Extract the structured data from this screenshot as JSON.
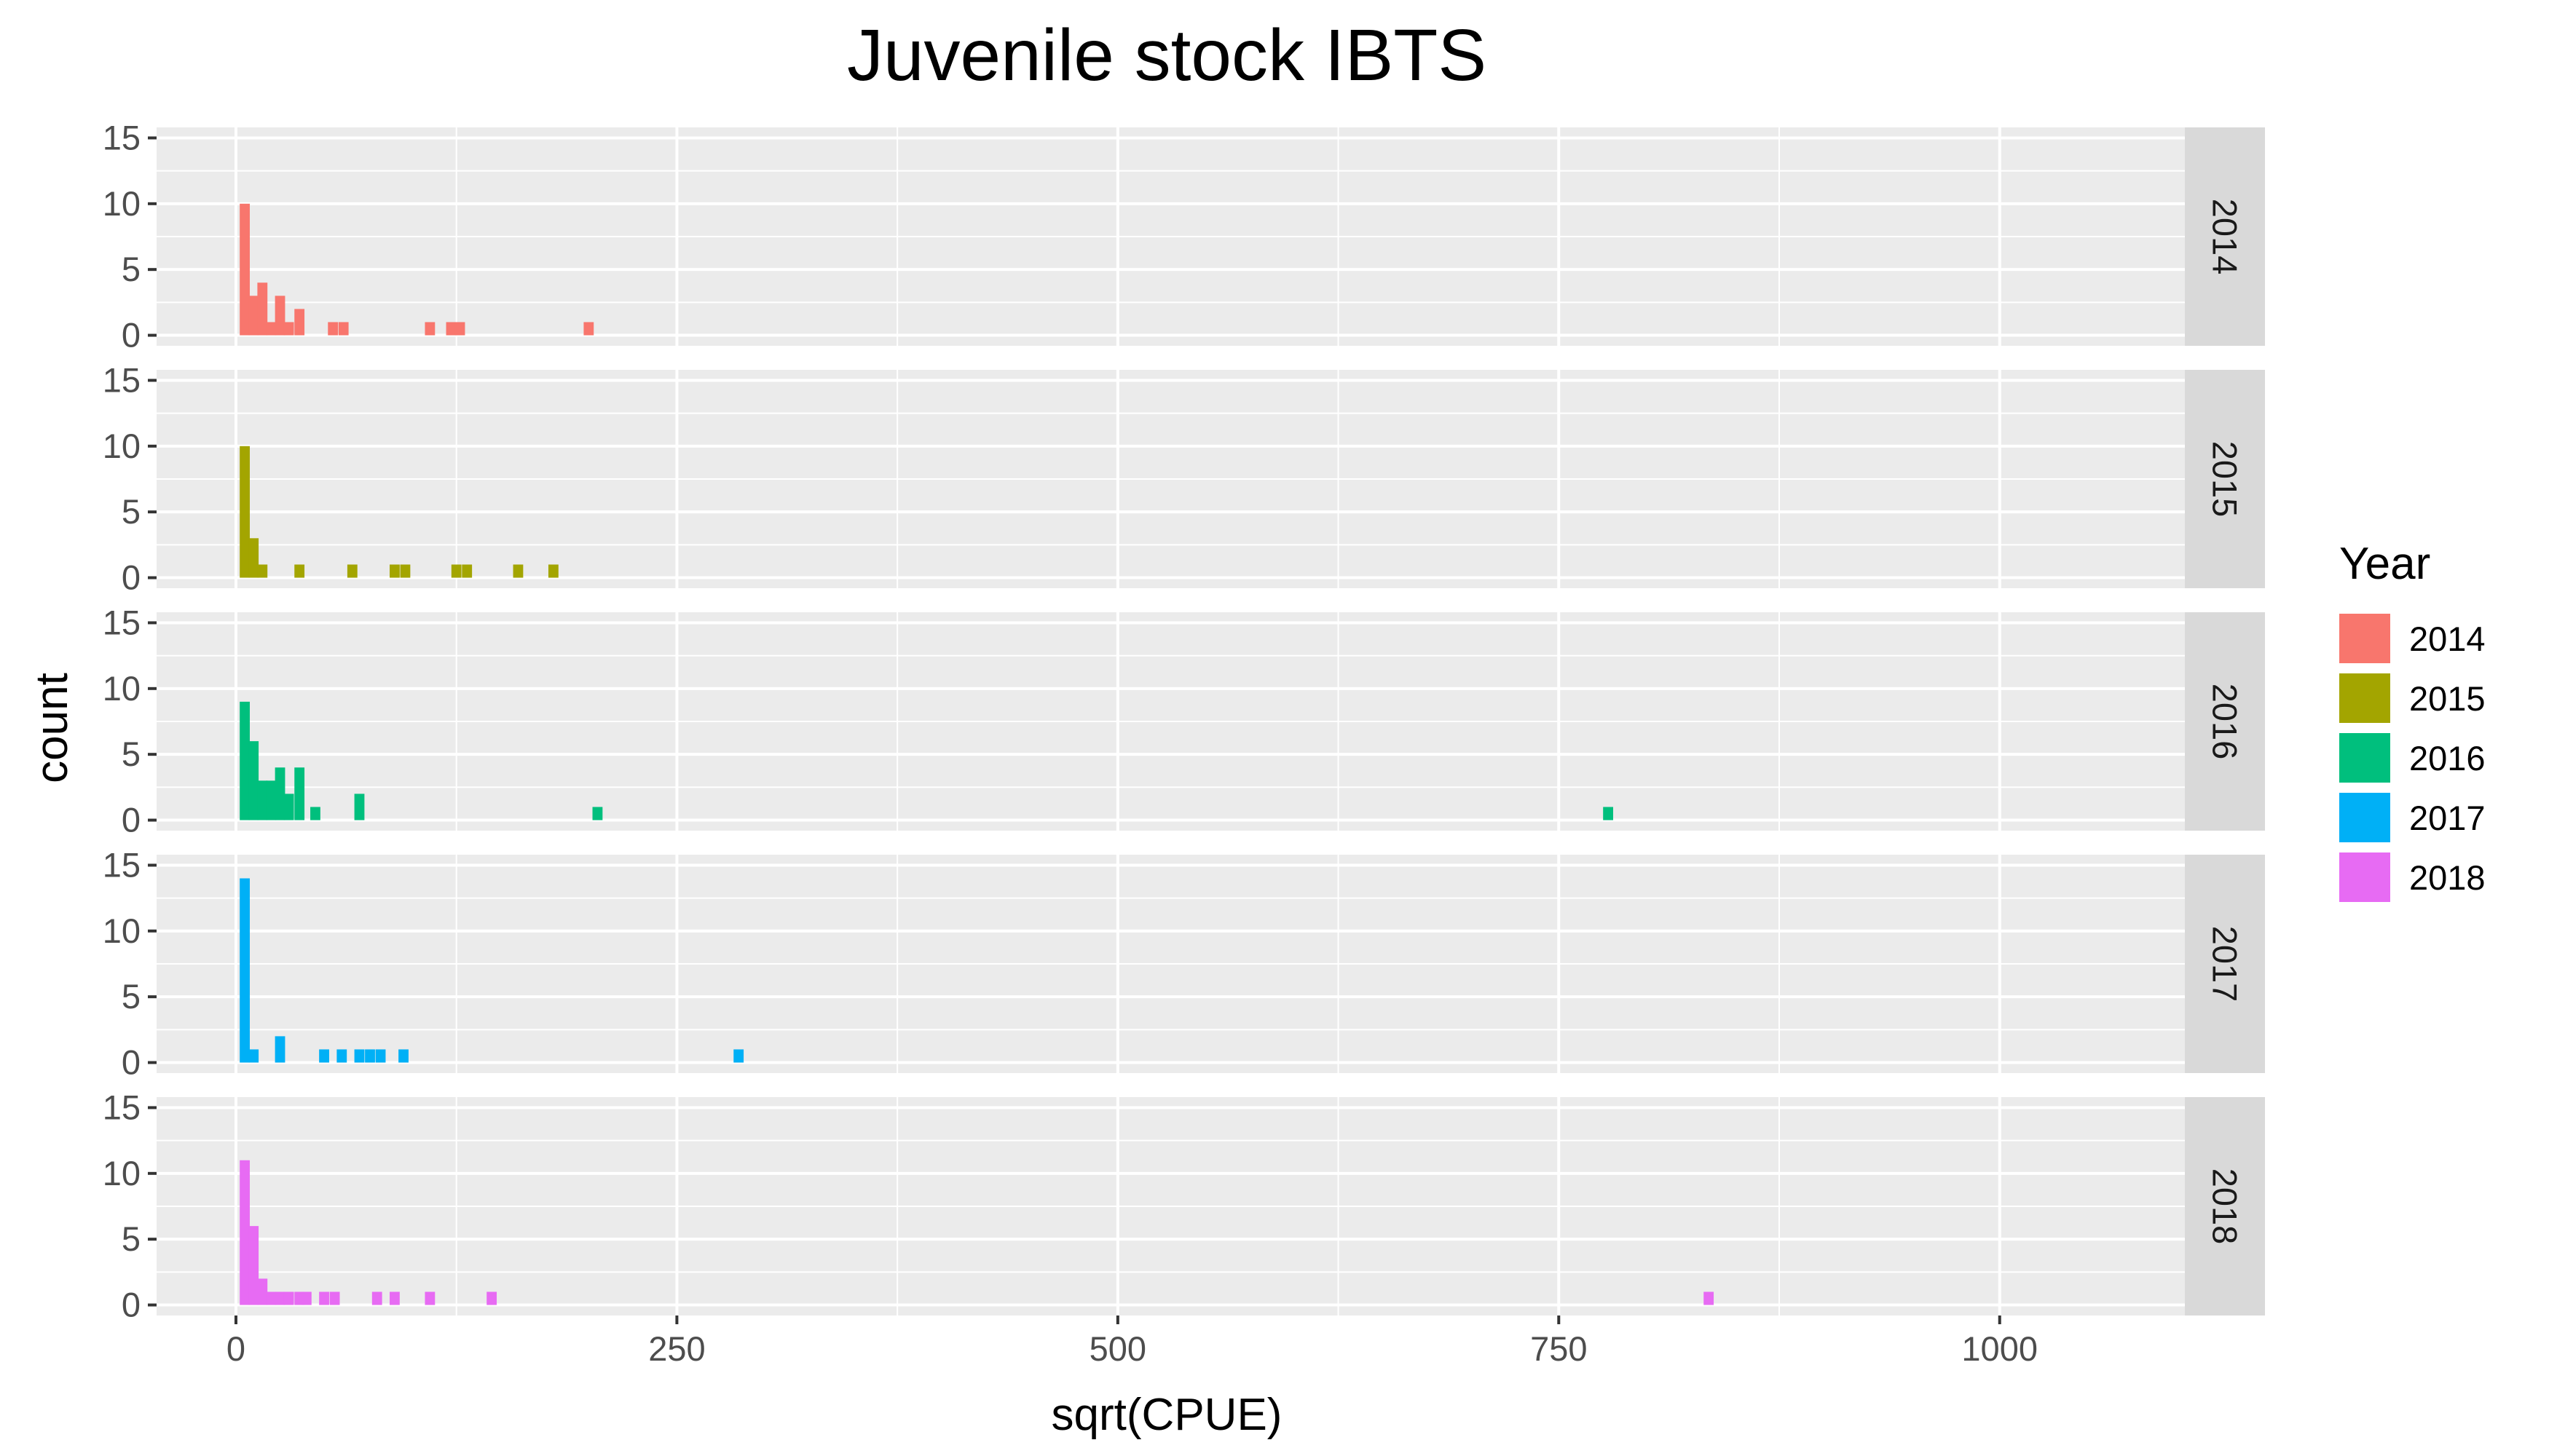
{
  "chart_data": {
    "type": "bar",
    "title": "Juvenile stock IBTS",
    "xlabel": "sqrt(CPUE)",
    "ylabel": "count",
    "xlim": [
      -45,
      1105
    ],
    "ylim": [
      -0.8,
      15.8
    ],
    "x_ticks": [
      0,
      250,
      500,
      750,
      1000
    ],
    "y_ticks": [
      0,
      5,
      10,
      15
    ],
    "bin_width": 5.7,
    "grid": true,
    "legend_title": "Year",
    "legend_position": "right",
    "facets": [
      {
        "label": "2014",
        "color": "#F8766D",
        "bins": [
          {
            "x": 5,
            "count": 10
          },
          {
            "x": 10,
            "count": 3
          },
          {
            "x": 15,
            "count": 4
          },
          {
            "x": 20,
            "count": 1
          },
          {
            "x": 25,
            "count": 3
          },
          {
            "x": 30,
            "count": 1
          },
          {
            "x": 36,
            "count": 2
          },
          {
            "x": 55,
            "count": 1
          },
          {
            "x": 61,
            "count": 1
          },
          {
            "x": 110,
            "count": 1
          },
          {
            "x": 122,
            "count": 1
          },
          {
            "x": 127,
            "count": 1
          },
          {
            "x": 200,
            "count": 1
          }
        ]
      },
      {
        "label": "2015",
        "color": "#A3A500",
        "bins": [
          {
            "x": 5,
            "count": 10
          },
          {
            "x": 10,
            "count": 3
          },
          {
            "x": 15,
            "count": 1
          },
          {
            "x": 36,
            "count": 1
          },
          {
            "x": 66,
            "count": 1
          },
          {
            "x": 90,
            "count": 1
          },
          {
            "x": 96,
            "count": 1
          },
          {
            "x": 125,
            "count": 1
          },
          {
            "x": 131,
            "count": 1
          },
          {
            "x": 160,
            "count": 1
          },
          {
            "x": 180,
            "count": 1
          }
        ]
      },
      {
        "label": "2016",
        "color": "#00BF7D",
        "bins": [
          {
            "x": 5,
            "count": 9
          },
          {
            "x": 10,
            "count": 6
          },
          {
            "x": 15,
            "count": 3
          },
          {
            "x": 20,
            "count": 3
          },
          {
            "x": 25,
            "count": 4
          },
          {
            "x": 30,
            "count": 2
          },
          {
            "x": 36,
            "count": 4
          },
          {
            "x": 45,
            "count": 1
          },
          {
            "x": 70,
            "count": 2
          },
          {
            "x": 205,
            "count": 1
          },
          {
            "x": 778,
            "count": 1
          }
        ]
      },
      {
        "label": "2017",
        "color": "#00B0F6",
        "bins": [
          {
            "x": 5,
            "count": 14
          },
          {
            "x": 10,
            "count": 1
          },
          {
            "x": 25,
            "count": 2
          },
          {
            "x": 50,
            "count": 1
          },
          {
            "x": 60,
            "count": 1
          },
          {
            "x": 70,
            "count": 1
          },
          {
            "x": 76,
            "count": 1
          },
          {
            "x": 82,
            "count": 1
          },
          {
            "x": 95,
            "count": 1
          },
          {
            "x": 285,
            "count": 1
          }
        ]
      },
      {
        "label": "2018",
        "color": "#E76BF3",
        "bins": [
          {
            "x": 5,
            "count": 11
          },
          {
            "x": 10,
            "count": 6
          },
          {
            "x": 15,
            "count": 2
          },
          {
            "x": 20,
            "count": 1
          },
          {
            "x": 25,
            "count": 1
          },
          {
            "x": 30,
            "count": 1
          },
          {
            "x": 36,
            "count": 1
          },
          {
            "x": 40,
            "count": 1
          },
          {
            "x": 50,
            "count": 1
          },
          {
            "x": 56,
            "count": 1
          },
          {
            "x": 80,
            "count": 1
          },
          {
            "x": 90,
            "count": 1
          },
          {
            "x": 110,
            "count": 1
          },
          {
            "x": 145,
            "count": 1
          },
          {
            "x": 835,
            "count": 1
          }
        ]
      }
    ]
  }
}
